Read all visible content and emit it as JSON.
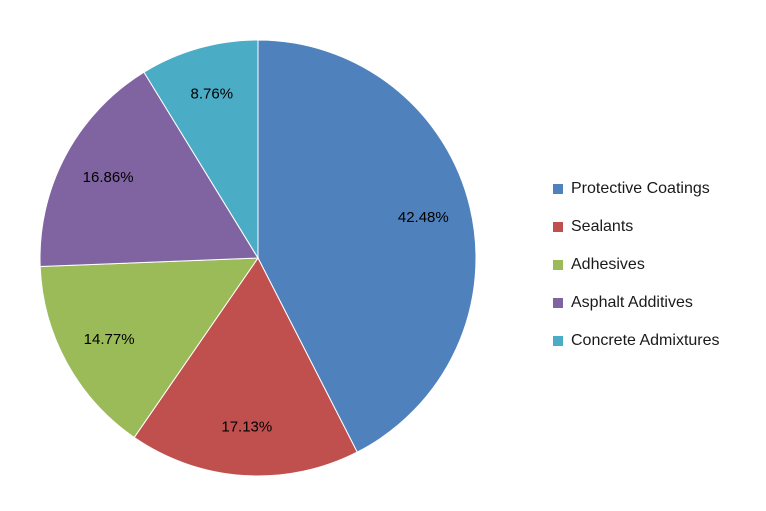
{
  "chart_data": {
    "type": "pie",
    "title": "",
    "categories": [
      "Protective Coatings",
      "Sealants",
      "Adhesives",
      "Asphalt Additives",
      "Concrete Admixtures"
    ],
    "values": [
      42.48,
      17.13,
      14.77,
      16.86,
      8.76
    ],
    "data_labels": [
      "42.48%",
      "17.13%",
      "14.77%",
      "16.86%",
      "8.76%"
    ],
    "colors": [
      "#4F81BD",
      "#C0504D",
      "#9BBB59",
      "#8064A2",
      "#4BACC6"
    ],
    "start_angle": "12 o'clock",
    "direction": "clockwise",
    "legend_position": "right"
  }
}
